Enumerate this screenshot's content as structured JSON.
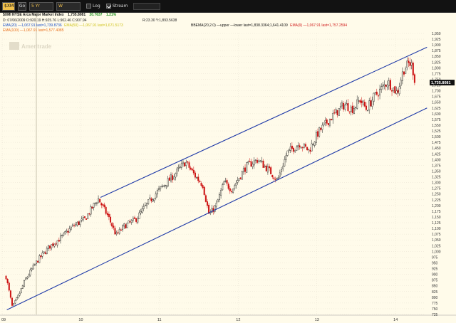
{
  "toolbar": {
    "symbol": "$XMI",
    "go_label": "Go",
    "range": "5 Yr",
    "interval": "W",
    "log_label": "Log",
    "log_checked": false,
    "stream_label": "Stream",
    "stream_checked": true
  },
  "header": {
    "line1_symbol": "$XMI NYSE Arca Major Market Index",
    "line1_last": "1,735.8081",
    "line1_change": "20.7637",
    "line1_pct": "1.21%",
    "line2_bar": "D: 07/06/2009 O:920.19 H:925.76 L:902.46 C:907.94",
    "line2_range": "R:23.30 Y:1,893.5638",
    "line3_a": "EMA(20) —1,067.91 last=1,739.8736",
    "line3_b": "EMA(50) —1,067.91 last=1,671.5173",
    "line3_c": "BBEMA(20,2.0) —upper —lower last=1,838.3364;1,641.4109",
    "line3_d": "EMA(9) —1,067.91 last=1,757.2594",
    "line4": "EMA(100) —1,067.91 last=1,577.4085",
    "watermark": "Ameritrade",
    "price_tag": "1,735.8081"
  },
  "colors": {
    "background": "#fffbea",
    "candle_up": "#1a1a1a",
    "candle_down": "#cc1111",
    "channel": "#1f3aa8",
    "price_tag_bg": "#111111",
    "grid": "#e2dccb",
    "ema_orange": "#e86e1a",
    "ema_blue": "#1c50c8",
    "ema_green": "#2e8b2e",
    "ema_yellow": "#cfc21a",
    "ema_red": "#d01818",
    "change_green": "#1a8f1a"
  },
  "chart_data": {
    "type": "candlestick",
    "x_ticks": [
      "09",
      "10",
      "11",
      "12",
      "13",
      "14"
    ],
    "y_ticks": [
      "725",
      "750",
      "775",
      "800",
      "825",
      "850",
      "875",
      "900",
      "925",
      "950",
      "975",
      "1,000",
      "1,025",
      "1,050",
      "1,075",
      "1,100",
      "1,125",
      "1,150",
      "1,175",
      "1,200",
      "1,225",
      "1,250",
      "1,275",
      "1,300",
      "1,325",
      "1,350",
      "1,375",
      "1,400",
      "1,425",
      "1,450",
      "1,475",
      "1,500",
      "1,525",
      "1,550",
      "1,575",
      "1,600",
      "1,625",
      "1,650",
      "1,675",
      "1,700",
      "1,725",
      "1,750",
      "1,775",
      "1,800",
      "1,825",
      "1,850",
      "1,875",
      "1,900",
      "1,925",
      "1,950"
    ],
    "y_range": [
      725,
      1950
    ],
    "x_range": [
      2009.0,
      2014.37
    ],
    "channel_upper": [
      [
        2010.25,
        1235
      ],
      [
        2014.4,
        1890
      ]
    ],
    "channel_lower": [
      [
        2009.06,
        745
      ],
      [
        2014.4,
        1625
      ]
    ],
    "anchors": [
      [
        2009.05,
        890
      ],
      [
        2009.13,
        755
      ],
      [
        2009.2,
        800
      ],
      [
        2009.3,
        880
      ],
      [
        2009.45,
        960
      ],
      [
        2009.6,
        1020
      ],
      [
        2009.75,
        1060
      ],
      [
        2009.9,
        1110
      ],
      [
        2010.05,
        1140
      ],
      [
        2010.22,
        1230
      ],
      [
        2010.35,
        1150
      ],
      [
        2010.45,
        1070
      ],
      [
        2010.55,
        1110
      ],
      [
        2010.7,
        1140
      ],
      [
        2010.85,
        1210
      ],
      [
        2011.0,
        1270
      ],
      [
        2011.15,
        1320
      ],
      [
        2011.33,
        1390
      ],
      [
        2011.45,
        1330
      ],
      [
        2011.55,
        1290
      ],
      [
        2011.63,
        1160
      ],
      [
        2011.72,
        1200
      ],
      [
        2011.82,
        1300
      ],
      [
        2011.92,
        1270
      ],
      [
        2012.1,
        1370
      ],
      [
        2012.25,
        1400
      ],
      [
        2012.4,
        1350
      ],
      [
        2012.5,
        1310
      ],
      [
        2012.62,
        1430
      ],
      [
        2012.78,
        1470
      ],
      [
        2012.9,
        1440
      ],
      [
        2013.02,
        1520
      ],
      [
        2013.2,
        1590
      ],
      [
        2013.35,
        1640
      ],
      [
        2013.45,
        1620
      ],
      [
        2013.55,
        1660
      ],
      [
        2013.63,
        1620
      ],
      [
        2013.72,
        1670
      ],
      [
        2013.9,
        1740
      ],
      [
        2014.02,
        1690
      ],
      [
        2014.1,
        1790
      ],
      [
        2014.17,
        1820
      ],
      [
        2014.21,
        1810
      ],
      [
        2014.25,
        1735
      ]
    ]
  }
}
